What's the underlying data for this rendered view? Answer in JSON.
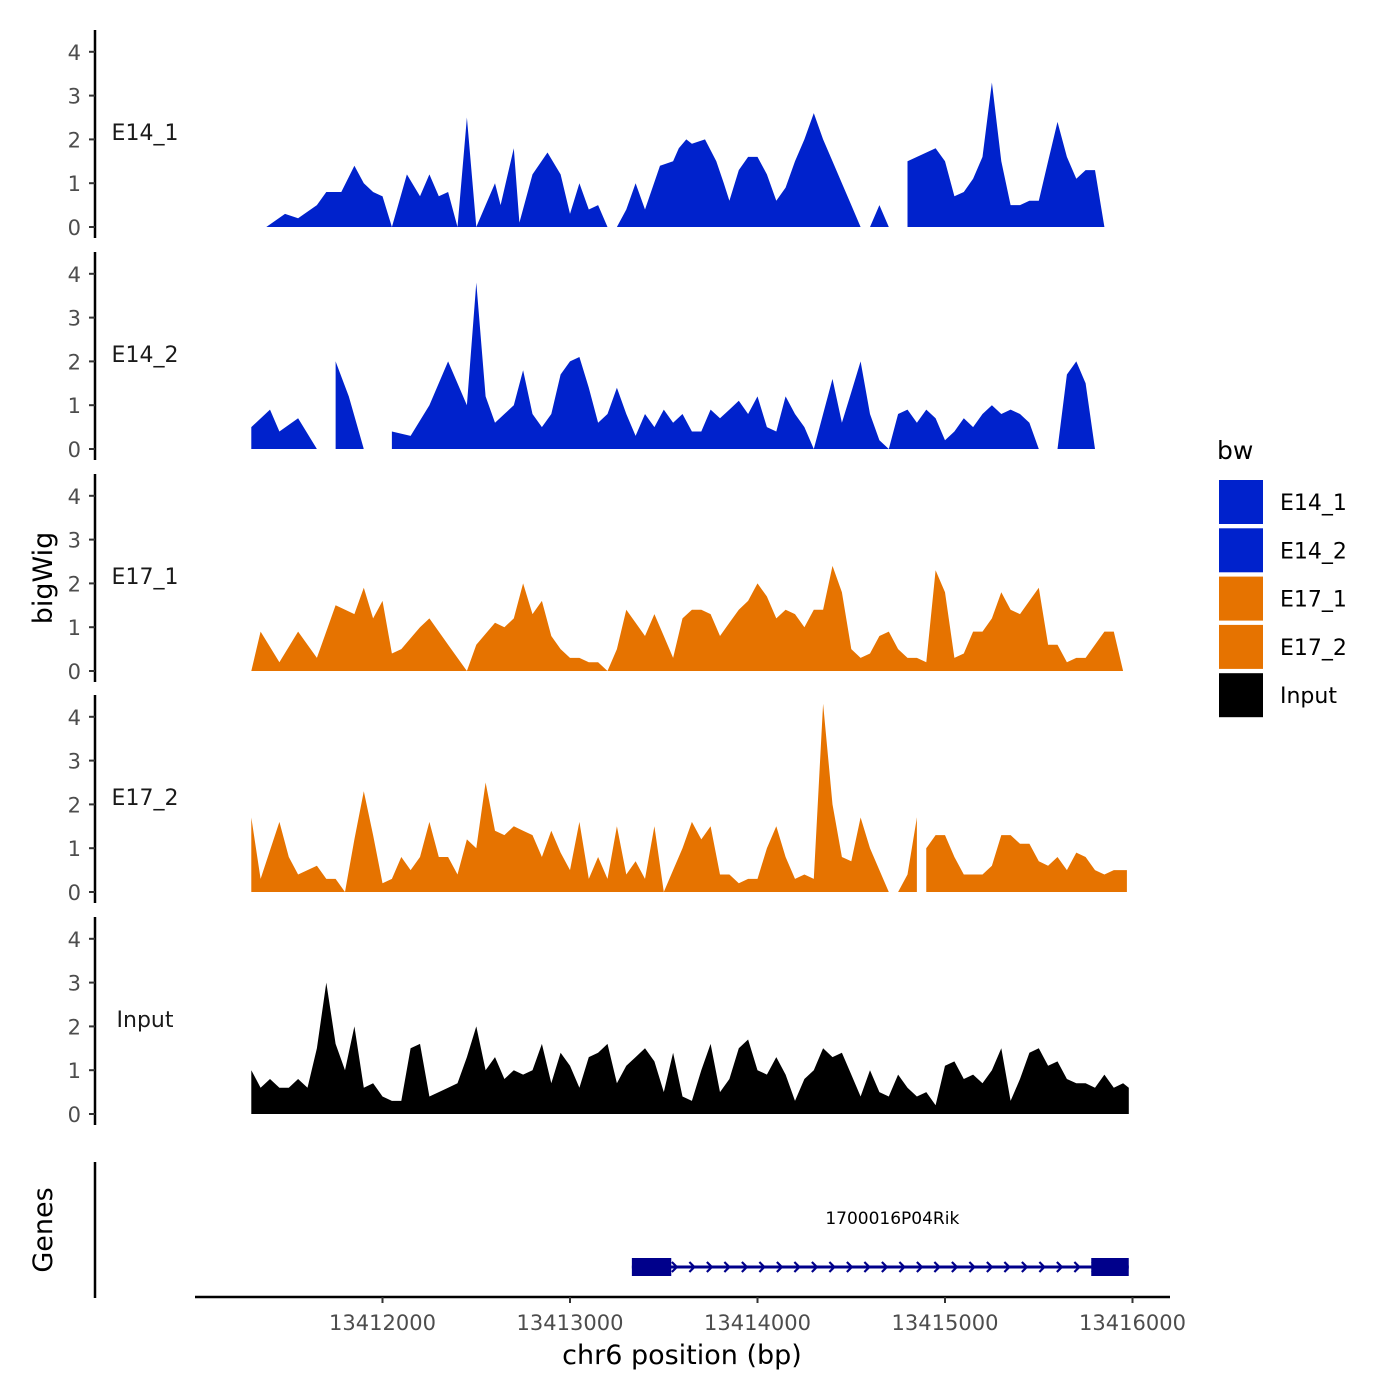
{
  "chart_data": {
    "type": "area",
    "ylabel": "bigWig",
    "xlabel": "chr6 position (bp)",
    "x_ticks": [
      13412000,
      13413000,
      13414000,
      13415000,
      13416000
    ],
    "x_tick_labels": [
      "13412000",
      "13413000",
      "13414000",
      "13415000",
      "13416000"
    ],
    "xlim": [
      13411000,
      13416200
    ],
    "ylim": [
      0,
      4.5
    ],
    "y_ticks": [
      0,
      1,
      2,
      3,
      4
    ],
    "y_tick_labels": [
      "0",
      "1",
      "2",
      "3",
      "4"
    ],
    "legend": {
      "title": "bw",
      "position": "right",
      "entries": [
        {
          "label": "E14_1",
          "color": "#0022CC"
        },
        {
          "label": "E14_2",
          "color": "#0022CC"
        },
        {
          "label": "E17_1",
          "color": "#E67300"
        },
        {
          "label": "E17_2",
          "color": "#E67300"
        },
        {
          "label": "Input",
          "color": "#000000"
        }
      ]
    },
    "series": [
      {
        "name": "E14_1",
        "label": "E14_1",
        "color": "#0022CC",
        "x": [
          13411380,
          13411480,
          13411550,
          13411650,
          13411700,
          13411780,
          13411850,
          13411900,
          13411950,
          13412000,
          13412050,
          13412130,
          13412200,
          13412250,
          13412300,
          13412350,
          13412400,
          13412450,
          13412500,
          13412550,
          13412600,
          13412630,
          13412700,
          13412730,
          13412800,
          13412880,
          13412950,
          13413000,
          13413050,
          13413100,
          13413150,
          13413200,
          13413250,
          13413300,
          13413350,
          13413400,
          13413480,
          13413550,
          13413580,
          13413620,
          13413650,
          13413720,
          13413780,
          13413820,
          13413850,
          13413900,
          13413950,
          13414000,
          13414050,
          13414100,
          13414150,
          13414200,
          13414250,
          13414300,
          13414350,
          13414400,
          13414450,
          13414500,
          13414550,
          13414600,
          13414650,
          13414700,
          13414760,
          13414800,
          13414950,
          13415000,
          13415050,
          13415100,
          13415150,
          13415200,
          13415250,
          13415300,
          13415350,
          13415400,
          13415450,
          13415500,
          13415550,
          13415600,
          13415650,
          13415700,
          13415750,
          13415800,
          13415850,
          13415900,
          13415950,
          13415970,
          13415990
        ],
        "y": [
          0,
          0.3,
          0.2,
          0.5,
          0.8,
          0.8,
          1.4,
          1.0,
          0.8,
          0.7,
          0,
          1.2,
          0.7,
          1.2,
          0.7,
          0.8,
          0,
          2.5,
          0,
          0.5,
          1.0,
          0.5,
          1.8,
          0.1,
          1.2,
          1.7,
          1.2,
          0.3,
          1.0,
          0.4,
          0.5,
          0,
          0,
          0.4,
          1.0,
          0.4,
          1.4,
          1.5,
          1.8,
          2.0,
          1.9,
          2.0,
          1.5,
          1.0,
          0.6,
          1.3,
          1.6,
          1.6,
          1.2,
          0.6,
          0.9,
          1.5,
          2.0,
          2.6,
          2.0,
          1.5,
          1.0,
          0.5,
          0,
          0,
          0.5,
          0,
          0,
          1.5,
          1.8,
          1.5,
          0.7,
          0.8,
          1.1,
          1.6,
          3.3,
          1.5,
          0.5,
          0.5,
          0.6,
          0.6,
          1.5,
          2.4,
          1.6,
          1.1,
          1.3,
          1.3,
          0,
          0,
          0,
          0,
          0
        ],
        "gaps": [
          [
            13414760,
            13414800
          ]
        ]
      },
      {
        "name": "E14_2",
        "label": "E14_2",
        "color": "#0022CC",
        "x": [
          13411300,
          13411400,
          13411450,
          13411550,
          13411650,
          13411750,
          13411820,
          13411900,
          13412050,
          13412150,
          13412250,
          13412350,
          13412450,
          13412500,
          13412550,
          13412600,
          13412650,
          13412700,
          13412750,
          13412800,
          13412850,
          13412900,
          13412950,
          13413000,
          13413050,
          13413100,
          13413150,
          13413200,
          13413250,
          13413300,
          13413350,
          13413400,
          13413450,
          13413500,
          13413550,
          13413600,
          13413650,
          13413700,
          13413750,
          13413800,
          13413850,
          13413900,
          13413950,
          13414000,
          13414050,
          13414100,
          13414150,
          13414200,
          13414250,
          13414300,
          13414350,
          13414400,
          13414450,
          13414500,
          13414550,
          13414600,
          13414650,
          13414700,
          13414750,
          13414800,
          13414850,
          13414900,
          13414950,
          13415000,
          13415050,
          13415100,
          13415150,
          13415200,
          13415250,
          13415300,
          13415350,
          13415400,
          13415450,
          13415500,
          13415550,
          13415600,
          13415650,
          13415700,
          13415750,
          13415800,
          13415850,
          13415900,
          13415950,
          13415970
        ],
        "y": [
          0.5,
          0.9,
          0.4,
          0.7,
          0,
          2.0,
          1.2,
          0,
          0.4,
          0.3,
          1.0,
          2.0,
          1.0,
          3.8,
          1.2,
          0.6,
          0.8,
          1.0,
          1.8,
          0.8,
          0.5,
          0.8,
          1.7,
          2.0,
          2.1,
          1.4,
          0.6,
          0.8,
          1.4,
          0.8,
          0.3,
          0.8,
          0.5,
          0.9,
          0.6,
          0.8,
          0.4,
          0.4,
          0.9,
          0.7,
          0.9,
          1.1,
          0.8,
          1.2,
          0.5,
          0.4,
          1.2,
          0.8,
          0.5,
          0,
          0.8,
          1.6,
          0.6,
          1.3,
          2.0,
          0.8,
          0.2,
          0,
          0.8,
          0.9,
          0.6,
          0.9,
          0.7,
          0.2,
          0.4,
          0.7,
          0.5,
          0.8,
          1.0,
          0.8,
          0.9,
          0.8,
          0.6,
          0,
          0,
          0,
          1.7,
          2.0,
          1.5,
          0,
          0,
          0,
          0,
          0
        ],
        "gaps": [
          [
            13411650,
            13411750
          ],
          [
            13411900,
            13412050
          ]
        ]
      },
      {
        "name": "E17_1",
        "label": "E17_1",
        "color": "#E67300",
        "x": [
          13411300,
          13411350,
          13411450,
          13411550,
          13411650,
          13411750,
          13411850,
          13411900,
          13411950,
          13412000,
          13412050,
          13412100,
          13412200,
          13412250,
          13412350,
          13412450,
          13412500,
          13412600,
          13412650,
          13412700,
          13412750,
          13412800,
          13412850,
          13412900,
          13412950,
          13413000,
          13413050,
          13413100,
          13413150,
          13413200,
          13413250,
          13413300,
          13413350,
          13413400,
          13413450,
          13413500,
          13413550,
          13413600,
          13413650,
          13413700,
          13413750,
          13413800,
          13413850,
          13413900,
          13413950,
          13414000,
          13414050,
          13414100,
          13414150,
          13414200,
          13414250,
          13414300,
          13414350,
          13414400,
          13414450,
          13414500,
          13414550,
          13414600,
          13414650,
          13414700,
          13414750,
          13414800,
          13414850,
          13414900,
          13414950,
          13415000,
          13415050,
          13415100,
          13415150,
          13415200,
          13415250,
          13415300,
          13415350,
          13415400,
          13415450,
          13415500,
          13415550,
          13415600,
          13415650,
          13415700,
          13415750,
          13415800,
          13415850,
          13415900,
          13415950,
          13415970
        ],
        "y": [
          0,
          0.9,
          0.2,
          0.9,
          0.3,
          1.5,
          1.3,
          1.9,
          1.2,
          1.6,
          0.4,
          0.5,
          1.0,
          1.2,
          0.6,
          0,
          0.6,
          1.1,
          1.0,
          1.2,
          2.0,
          1.3,
          1.6,
          0.8,
          0.5,
          0.3,
          0.3,
          0.2,
          0.2,
          0,
          0.5,
          1.4,
          1.1,
          0.8,
          1.3,
          0.8,
          0.3,
          1.2,
          1.4,
          1.4,
          1.3,
          0.8,
          1.1,
          1.4,
          1.6,
          2.0,
          1.7,
          1.2,
          1.4,
          1.3,
          1.0,
          1.4,
          1.4,
          2.4,
          1.8,
          0.5,
          0.3,
          0.4,
          0.8,
          0.9,
          0.5,
          0.3,
          0.3,
          0.2,
          2.3,
          1.8,
          0.3,
          0.4,
          0.9,
          0.9,
          1.2,
          1.8,
          1.4,
          1.3,
          1.6,
          1.9,
          0.6,
          0.6,
          0.2,
          0.3,
          0.3,
          0.6,
          0.9,
          0.9,
          0,
          0
        ],
        "gaps": []
      },
      {
        "name": "E17_2",
        "label": "E17_2",
        "color": "#E67300",
        "x": [
          13411300,
          13411350,
          13411450,
          13411500,
          13411550,
          13411650,
          13411700,
          13411750,
          13411800,
          13411850,
          13411900,
          13411950,
          13412000,
          13412050,
          13412100,
          13412150,
          13412200,
          13412250,
          13412300,
          13412350,
          13412400,
          13412450,
          13412500,
          13412550,
          13412600,
          13412650,
          13412700,
          13412750,
          13412800,
          13412850,
          13412900,
          13412950,
          13413000,
          13413050,
          13413100,
          13413150,
          13413200,
          13413250,
          13413300,
          13413350,
          13413400,
          13413450,
          13413500,
          13413550,
          13413600,
          13413650,
          13413700,
          13413750,
          13413800,
          13413850,
          13413900,
          13413950,
          13414000,
          13414050,
          13414100,
          13414150,
          13414200,
          13414250,
          13414300,
          13414350,
          13414400,
          13414450,
          13414500,
          13414550,
          13414600,
          13414650,
          13414700,
          13414750,
          13414800,
          13414850,
          13414900,
          13414950,
          13415000,
          13415050,
          13415100,
          13415150,
          13415200,
          13415250,
          13415300,
          13415350,
          13415400,
          13415450,
          13415500,
          13415550,
          13415600,
          13415650,
          13415700,
          13415750,
          13415800,
          13415850,
          13415900,
          13415950,
          13415970
        ],
        "y": [
          1.7,
          0.3,
          1.6,
          0.8,
          0.4,
          0.6,
          0.3,
          0.3,
          0,
          1.2,
          2.3,
          1.3,
          0.2,
          0.3,
          0.8,
          0.5,
          0.8,
          1.6,
          0.8,
          0.8,
          0.4,
          1.2,
          1.0,
          2.5,
          1.4,
          1.3,
          1.5,
          1.4,
          1.3,
          0.8,
          1.4,
          0.9,
          0.5,
          1.6,
          0.3,
          0.8,
          0.3,
          1.5,
          0.4,
          0.7,
          0.3,
          1.5,
          0,
          0.5,
          1.0,
          1.6,
          1.2,
          1.5,
          0.4,
          0.4,
          0.2,
          0.3,
          0.3,
          1.0,
          1.5,
          0.8,
          0.3,
          0.4,
          0.3,
          4.3,
          2.0,
          0.8,
          0.7,
          1.7,
          1.0,
          0.5,
          0,
          0,
          0.4,
          1.7,
          1.0,
          1.3,
          1.3,
          0.8,
          0.4,
          0.4,
          0.4,
          0.6,
          1.3,
          1.3,
          1.1,
          1.1,
          0.7,
          0.6,
          0.8,
          0.5,
          0.9,
          0.8,
          0.5,
          0.4,
          0.5,
          0.5,
          0.5
        ],
        "gaps": [
          [
            13414850,
            13414900
          ]
        ]
      },
      {
        "name": "Input",
        "label": "Input",
        "color": "#000000",
        "x": [
          13411300,
          13411350,
          13411400,
          13411450,
          13411500,
          13411550,
          13411600,
          13411650,
          13411700,
          13411750,
          13411800,
          13411850,
          13411900,
          13411950,
          13412000,
          13412050,
          13412100,
          13412150,
          13412200,
          13412250,
          13412300,
          13412350,
          13412400,
          13412450,
          13412500,
          13412550,
          13412600,
          13412650,
          13412700,
          13412750,
          13412800,
          13412850,
          13412900,
          13412950,
          13413000,
          13413050,
          13413100,
          13413150,
          13413200,
          13413250,
          13413300,
          13413350,
          13413400,
          13413450,
          13413500,
          13413550,
          13413600,
          13413650,
          13413700,
          13413750,
          13413800,
          13413850,
          13413900,
          13413950,
          13414000,
          13414050,
          13414100,
          13414150,
          13414200,
          13414250,
          13414300,
          13414350,
          13414400,
          13414450,
          13414500,
          13414550,
          13414600,
          13414650,
          13414700,
          13414750,
          13414800,
          13414850,
          13414900,
          13414950,
          13415000,
          13415050,
          13415100,
          13415150,
          13415200,
          13415250,
          13415300,
          13415350,
          13415400,
          13415450,
          13415500,
          13415550,
          13415600,
          13415650,
          13415700,
          13415750,
          13415800,
          13415850,
          13415900,
          13415950,
          13415980
        ],
        "y": [
          1.0,
          0.6,
          0.8,
          0.6,
          0.6,
          0.8,
          0.6,
          1.5,
          3.0,
          1.6,
          1.0,
          2.0,
          0.6,
          0.7,
          0.4,
          0.3,
          0.3,
          1.5,
          1.6,
          0.4,
          0.5,
          0.6,
          0.7,
          1.3,
          2.0,
          1.0,
          1.3,
          0.8,
          1.0,
          0.9,
          1.0,
          1.6,
          0.7,
          1.4,
          1.1,
          0.6,
          1.3,
          1.4,
          1.6,
          0.7,
          1.1,
          1.3,
          1.5,
          1.2,
          0.5,
          1.4,
          0.4,
          0.3,
          1.0,
          1.6,
          0.5,
          0.8,
          1.5,
          1.7,
          1.0,
          0.9,
          1.3,
          0.9,
          0.3,
          0.8,
          1.0,
          1.5,
          1.3,
          1.4,
          0.9,
          0.4,
          1.0,
          0.5,
          0.4,
          0.9,
          0.6,
          0.4,
          0.5,
          0.2,
          1.1,
          1.2,
          0.8,
          0.9,
          0.7,
          1.0,
          1.5,
          0.3,
          0.8,
          1.4,
          1.5,
          1.1,
          1.2,
          0.8,
          0.7,
          0.7,
          0.6,
          0.9,
          0.6,
          0.7,
          0.6
        ],
        "gaps": []
      }
    ],
    "genes_track": {
      "label": "Genes",
      "genes": [
        {
          "name": "1700016P04Rik",
          "strand": "+",
          "start": 13413330,
          "end": 13415980,
          "exons": [
            [
              13413330,
              13413540
            ],
            [
              13415780,
              13415980
            ]
          ],
          "color": "#00008B"
        }
      ]
    }
  }
}
